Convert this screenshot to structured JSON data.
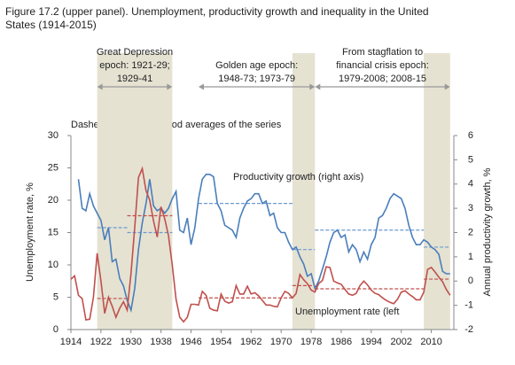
{
  "chart_data": {
    "type": "line",
    "title": [
      "Figure 17.2 (upper panel). Unemployment, productivity growth and inequality in the United",
      "States (1914-2015)"
    ],
    "note": "Dashed lines show period averages of the series",
    "ylabel": "Unemployment rate, %",
    "y2label": "Annual productivity growth, %",
    "epochs": [
      {
        "label": [
          "Great Depression",
          "epoch: 1921-29;",
          "1929-41"
        ],
        "span": [
          1921,
          1941
        ]
      },
      {
        "label": [
          "Golden age epoch:",
          "1948-73; 1973-79"
        ],
        "span": [
          1948,
          1979
        ]
      },
      {
        "label": [
          "From stagflation to",
          "financial crisis epoch:",
          "1979-2008; 2008-15"
        ],
        "span": [
          1979,
          2015
        ]
      }
    ],
    "shaded_periods": [
      [
        1921,
        1941
      ],
      [
        1973,
        1979
      ],
      [
        2008,
        2015
      ]
    ],
    "xlim": [
      1914,
      2016
    ],
    "xticks": [
      1914,
      1922,
      1930,
      1938,
      1946,
      1954,
      1962,
      1970,
      1978,
      1986,
      1994,
      2002,
      2010
    ],
    "ylim": [
      0,
      30
    ],
    "yticks": [
      0,
      5,
      10,
      15,
      20,
      25,
      30
    ],
    "y2lim": [
      -2,
      6
    ],
    "y2ticks": [
      -2,
      -1,
      0,
      1,
      2,
      3,
      4,
      5,
      6
    ],
    "x": [
      1914,
      1915,
      1916,
      1917,
      1918,
      1919,
      1920,
      1921,
      1922,
      1923,
      1924,
      1925,
      1926,
      1927,
      1928,
      1929,
      1930,
      1931,
      1932,
      1933,
      1934,
      1935,
      1936,
      1937,
      1938,
      1939,
      1940,
      1941,
      1942,
      1943,
      1944,
      1945,
      1946,
      1947,
      1948,
      1949,
      1950,
      1951,
      1952,
      1953,
      1954,
      1955,
      1956,
      1957,
      1958,
      1959,
      1960,
      1961,
      1962,
      1963,
      1964,
      1965,
      1966,
      1967,
      1968,
      1969,
      1970,
      1971,
      1972,
      1973,
      1974,
      1975,
      1976,
      1977,
      1978,
      1979,
      1980,
      1981,
      1982,
      1983,
      1984,
      1985,
      1986,
      1987,
      1988,
      1989,
      1990,
      1991,
      1992,
      1993,
      1994,
      1995,
      1996,
      1997,
      1998,
      1999,
      2000,
      2001,
      2002,
      2003,
      2004,
      2005,
      2006,
      2007,
      2008,
      2009,
      2010,
      2011,
      2012,
      2013,
      2014,
      2015
    ],
    "series": [
      {
        "name": "Productivity growth (right axis)",
        "color": "#4a7ebb",
        "avg_color": "#6b9bd2",
        "axis": "y2",
        "values": [
          null,
          null,
          4.2,
          3.0,
          2.9,
          3.6,
          3.1,
          2.8,
          2.5,
          1.7,
          2.2,
          0.8,
          0.9,
          0.1,
          -0.2,
          -0.8,
          -1.2,
          -0.3,
          1.3,
          2.4,
          3.2,
          4.2,
          3.1,
          2.9,
          3.0,
          2.8,
          3.0,
          3.4,
          3.7,
          2.1,
          2.0,
          2.6,
          1.5,
          2.2,
          3.4,
          4.2,
          4.4,
          4.4,
          4.3,
          3.2,
          2.9,
          2.3,
          2.2,
          2.1,
          1.8,
          2.6,
          3.0,
          3.3,
          3.4,
          3.6,
          3.6,
          3.2,
          3.3,
          2.7,
          2.8,
          2.2,
          2.0,
          2.0,
          1.6,
          1.3,
          1.4,
          1.0,
          0.7,
          0.2,
          0.3,
          -0.3,
          0.0,
          0.5,
          1.0,
          1.6,
          2.0,
          2.1,
          1.8,
          1.9,
          1.2,
          1.5,
          1.3,
          0.8,
          1.2,
          0.9,
          1.5,
          1.8,
          2.6,
          2.7,
          3.0,
          3.4,
          3.6,
          3.5,
          3.4,
          3.0,
          2.3,
          1.8,
          1.5,
          1.5,
          1.7,
          1.6,
          1.4,
          1.3,
          1.1,
          0.4,
          0.3,
          0.3
        ],
        "averages": [
          {
            "span": [
              1921,
              1929
            ],
            "value": 2.2
          },
          {
            "span": [
              1929,
              1941
            ],
            "value": 2.0
          },
          {
            "span": [
              1948,
              1973
            ],
            "value": 3.2
          },
          {
            "span": [
              1973,
              1979
            ],
            "value": 1.3
          },
          {
            "span": [
              1979,
              2008
            ],
            "value": 2.1
          },
          {
            "span": [
              2008,
              2015
            ],
            "value": 1.4
          }
        ]
      },
      {
        "name": "Unemployment rate (left",
        "color": "#c0504d",
        "avg_color": "#c0504d",
        "axis": "y",
        "values": [
          7.8,
          8.3,
          5.3,
          4.8,
          1.5,
          1.6,
          5.0,
          11.8,
          7.5,
          2.5,
          5.0,
          3.6,
          1.9,
          3.3,
          4.3,
          3.0,
          8.7,
          15.8,
          23.5,
          24.9,
          21.5,
          20.0,
          16.8,
          14.3,
          19.0,
          17.1,
          14.5,
          9.9,
          4.7,
          1.9,
          1.2,
          1.9,
          3.9,
          3.9,
          3.8,
          5.9,
          5.3,
          3.3,
          3.0,
          2.9,
          5.5,
          4.4,
          4.1,
          4.3,
          6.8,
          5.5,
          5.5,
          6.7,
          5.5,
          5.7,
          5.2,
          4.5,
          3.8,
          3.8,
          3.6,
          3.5,
          4.9,
          5.9,
          5.6,
          4.9,
          5.6,
          8.5,
          7.7,
          7.1,
          6.1,
          5.8,
          7.1,
          7.6,
          9.7,
          9.6,
          7.5,
          7.2,
          7.0,
          6.2,
          5.5,
          5.3,
          5.6,
          6.8,
          7.5,
          6.9,
          6.1,
          5.6,
          5.4,
          4.9,
          4.5,
          4.2,
          4.0,
          4.7,
          5.8,
          6.0,
          5.5,
          5.1,
          4.6,
          4.6,
          5.8,
          9.3,
          9.6,
          8.9,
          8.1,
          7.4,
          6.2,
          5.3
        ],
        "averages": [
          {
            "span": [
              1921,
              1929
            ],
            "value": 4.8
          },
          {
            "span": [
              1929,
              1941
            ],
            "value": 17.6
          },
          {
            "span": [
              1948,
              1973
            ],
            "value": 4.9
          },
          {
            "span": [
              1973,
              1979
            ],
            "value": 6.8
          },
          {
            "span": [
              1979,
              2008
            ],
            "value": 6.3
          },
          {
            "span": [
              2008,
              2015
            ],
            "value": 7.8
          }
        ]
      }
    ]
  }
}
